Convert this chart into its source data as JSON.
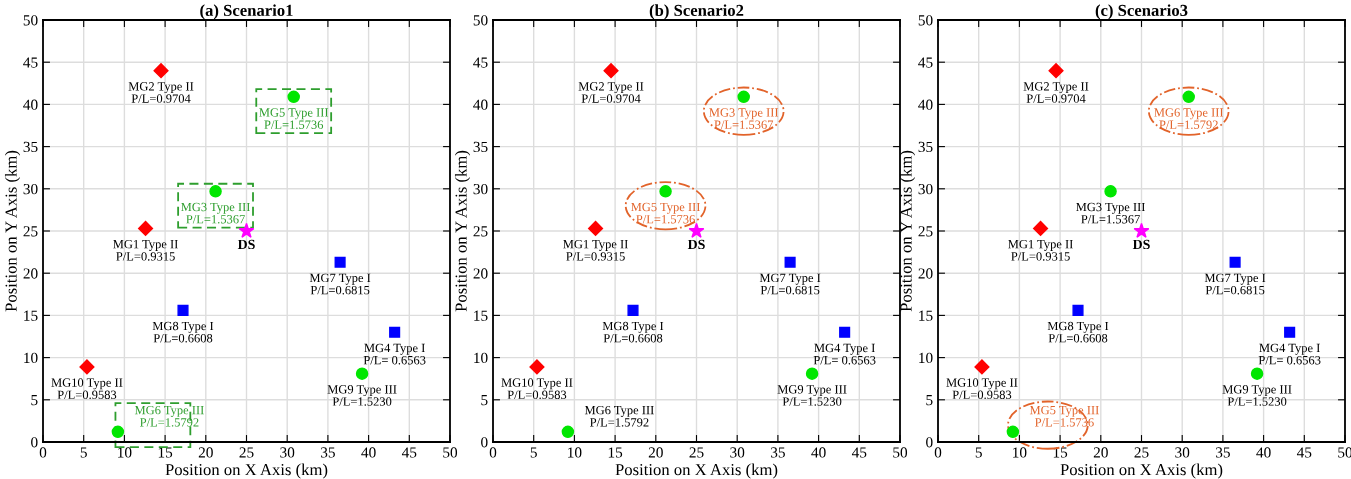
{
  "chart_data": [
    {
      "type": "scatter",
      "title": "(a) Scenario1",
      "xlabel": "Position on X Axis (km)",
      "ylabel": "Position on Y Axis (km)",
      "xlim": [
        0,
        50
      ],
      "ylim": [
        0,
        50
      ],
      "xticks": [
        0,
        5,
        10,
        15,
        20,
        25,
        30,
        35,
        40,
        45,
        50
      ],
      "yticks": [
        0,
        5,
        10,
        15,
        20,
        25,
        30,
        35,
        40,
        45,
        50
      ],
      "grid": true,
      "legend": false,
      "series": [
        {
          "color": "#0000ff",
          "marker": "square",
          "x": [
            36.5,
            17.2,
            43.2
          ],
          "values": [
            21.3,
            15.6,
            13.0
          ]
        },
        {
          "color": "#ff0000",
          "marker": "diamond",
          "x": [
            14.5,
            12.6,
            5.4
          ],
          "values": [
            44.0,
            25.3,
            8.9
          ]
        },
        {
          "color": "#00e600",
          "marker": "circle",
          "x": [
            30.8,
            21.2,
            39.2,
            9.2
          ],
          "values": [
            40.9,
            29.7,
            8.1,
            1.2
          ]
        },
        {
          "name": "DS",
          "color": "#ff00ff",
          "marker": "star",
          "x": [
            25.0
          ],
          "values": [
            25.0
          ]
        }
      ],
      "annotations": [
        {
          "text": "MG2 Type II\nP/L=0.9704",
          "x": 14.5,
          "y": 44.0
        },
        {
          "text": "MG5 Type III\nP/L=1.5736",
          "x": 30.8,
          "y": 40.9
        },
        {
          "text": "MG3 Type III\nP/L=1.5367",
          "x": 21.2,
          "y": 29.7
        },
        {
          "text": "MG1 Type II\nP/L=0.9315",
          "x": 12.6,
          "y": 25.3
        },
        {
          "text": "MG7 Type I\nP/L=0.6815",
          "x": 36.5,
          "y": 21.3
        },
        {
          "text": "MG8 Type I\nP/L=0.6608",
          "x": 17.2,
          "y": 15.6
        },
        {
          "text": "MG4 Type I\nP/L= 0.6563",
          "x": 43.2,
          "y": 13.0
        },
        {
          "text": "MG10 Type II\nP/L=0.9583",
          "x": 5.4,
          "y": 8.9
        },
        {
          "text": "MG9 Type III\nP/L=1.5230",
          "x": 39.2,
          "y": 8.1
        },
        {
          "text": "MG6 Type III\nP/L=1.5792",
          "x": 9.2,
          "y": 1.2
        }
      ]
    },
    {
      "type": "scatter",
      "title": "(b) Scenario2",
      "xlabel": "Position on X Axis (km)",
      "ylabel": "Position on Y Axis (km)",
      "xlim": [
        0,
        50
      ],
      "ylim": [
        0,
        50
      ],
      "xticks": [
        0,
        5,
        10,
        15,
        20,
        25,
        30,
        35,
        40,
        45,
        50
      ],
      "yticks": [
        0,
        5,
        10,
        15,
        20,
        25,
        30,
        35,
        40,
        45,
        50
      ],
      "grid": true,
      "legend": false,
      "series": [
        {
          "color": "#0000ff",
          "marker": "square",
          "x": [
            36.5,
            17.2,
            43.2
          ],
          "values": [
            21.3,
            15.6,
            13.0
          ]
        },
        {
          "color": "#ff0000",
          "marker": "diamond",
          "x": [
            14.5,
            12.6,
            5.4
          ],
          "values": [
            44.0,
            25.3,
            8.9
          ]
        },
        {
          "color": "#00e600",
          "marker": "circle",
          "x": [
            30.8,
            21.2,
            39.2,
            9.2
          ],
          "values": [
            40.9,
            29.7,
            8.1,
            1.2
          ]
        },
        {
          "name": "DS",
          "color": "#ff00ff",
          "marker": "star",
          "x": [
            25.0
          ],
          "values": [
            25.0
          ]
        }
      ],
      "annotations": [
        {
          "text": "MG2 Type II\nP/L=0.9704",
          "x": 14.5,
          "y": 44.0
        },
        {
          "text": "MG3 Type III\nP/L=1.5367",
          "x": 30.8,
          "y": 40.9
        },
        {
          "text": "MG5 Type III\nP/L=1.5736",
          "x": 21.2,
          "y": 29.7
        },
        {
          "text": "MG1 Type II\nP/L=0.9315",
          "x": 12.6,
          "y": 25.3
        },
        {
          "text": "MG7 Type I\nP/L=0.6815",
          "x": 36.5,
          "y": 21.3
        },
        {
          "text": "MG8 Type I\nP/L=0.6608",
          "x": 17.2,
          "y": 15.6
        },
        {
          "text": "MG4 Type I\nP/L= 0.6563",
          "x": 43.2,
          "y": 13.0
        },
        {
          "text": "MG10 Type II\nP/L=0.9583",
          "x": 5.4,
          "y": 8.9
        },
        {
          "text": "MG9 Type III\nP/L=1.5230",
          "x": 39.2,
          "y": 8.1
        },
        {
          "text": "MG6 Type III\nP/L=1.5792",
          "x": 9.2,
          "y": 1.2
        }
      ]
    },
    {
      "type": "scatter",
      "title": "(c) Scenario3",
      "xlabel": "Position on X Axis (km)",
      "ylabel": "Position on Y Axis (km)",
      "xlim": [
        0,
        50
      ],
      "ylim": [
        0,
        50
      ],
      "xticks": [
        0,
        5,
        10,
        15,
        20,
        25,
        30,
        35,
        40,
        45,
        50
      ],
      "yticks": [
        0,
        5,
        10,
        15,
        20,
        25,
        30,
        35,
        40,
        45,
        50
      ],
      "grid": true,
      "legend": false,
      "series": [
        {
          "color": "#0000ff",
          "marker": "square",
          "x": [
            36.5,
            17.2,
            43.2
          ],
          "values": [
            21.3,
            15.6,
            13.0
          ]
        },
        {
          "color": "#ff0000",
          "marker": "diamond",
          "x": [
            14.5,
            12.6,
            5.4
          ],
          "values": [
            44.0,
            25.3,
            8.9
          ]
        },
        {
          "color": "#00e600",
          "marker": "circle",
          "x": [
            30.8,
            21.2,
            39.2,
            9.2
          ],
          "values": [
            40.9,
            29.7,
            8.1,
            1.2
          ]
        },
        {
          "name": "DS",
          "color": "#ff00ff",
          "marker": "star",
          "x": [
            25.0
          ],
          "values": [
            25.0
          ]
        }
      ],
      "annotations": [
        {
          "text": "MG2 Type II\nP/L=0.9704",
          "x": 14.5,
          "y": 44.0
        },
        {
          "text": "MG6 Type III\nP/L=1.5792",
          "x": 30.8,
          "y": 40.9
        },
        {
          "text": "MG3 Type III\nP/L=1.5367",
          "x": 21.2,
          "y": 29.7
        },
        {
          "text": "MG1 Type II\nP/L=0.9315",
          "x": 12.6,
          "y": 25.3
        },
        {
          "text": "MG7 Type I\nP/L=0.6815",
          "x": 36.5,
          "y": 21.3
        },
        {
          "text": "MG8 Type I\nP/L=0.6608",
          "x": 17.2,
          "y": 15.6
        },
        {
          "text": "MG4 Type I\nP/L= 0.6563",
          "x": 43.2,
          "y": 13.0
        },
        {
          "text": "MG10 Type II\nP/L=0.9583",
          "x": 5.4,
          "y": 8.9
        },
        {
          "text": "MG9 Type III\nP/L=1.5230",
          "x": 39.2,
          "y": 8.1
        },
        {
          "text": "MG5 Type III\nP/L=1.5736",
          "x": 9.2,
          "y": 1.2
        }
      ]
    }
  ]
}
